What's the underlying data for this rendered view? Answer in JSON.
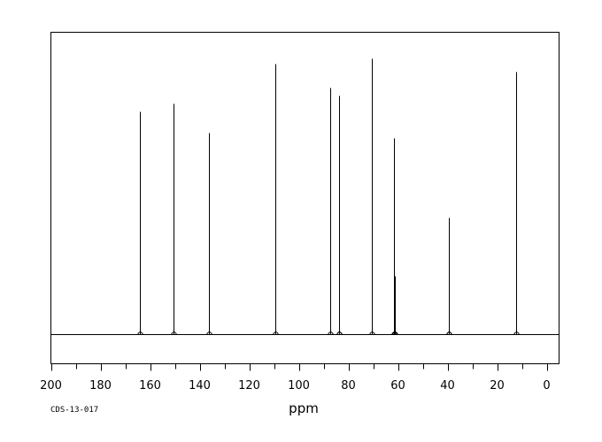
{
  "chart_data": {
    "type": "line",
    "title": "",
    "xlabel": "ppm",
    "ylabel": "",
    "xlim": [
      200,
      -5
    ],
    "ylim": [
      0,
      1
    ],
    "reversed_x": true,
    "grid": false,
    "x_ticks": [
      200,
      180,
      160,
      140,
      120,
      100,
      80,
      60,
      40,
      20,
      0
    ],
    "x_minor_step": 10,
    "peaks": [
      {
        "ppm": 164.0,
        "intensity": 0.84
      },
      {
        "ppm": 150.7,
        "intensity": 0.87
      },
      {
        "ppm": 136.3,
        "intensity": 0.76
      },
      {
        "ppm": 109.6,
        "intensity": 1.02
      },
      {
        "ppm": 87.2,
        "intensity": 0.93
      },
      {
        "ppm": 83.9,
        "intensity": 0.9
      },
      {
        "ppm": 83.6,
        "intensity": 0.65
      },
      {
        "ppm": 70.6,
        "intensity": 1.04
      },
      {
        "ppm": 61.5,
        "intensity": 0.74
      },
      {
        "ppm": 61.2,
        "intensity": 0.22
      },
      {
        "ppm": 39.5,
        "intensity": 0.44
      },
      {
        "ppm": 39.3,
        "intensity": 0.32
      },
      {
        "ppm": 12.2,
        "intensity": 0.99
      }
    ]
  },
  "footer": {
    "code": "CDS-13-017"
  }
}
